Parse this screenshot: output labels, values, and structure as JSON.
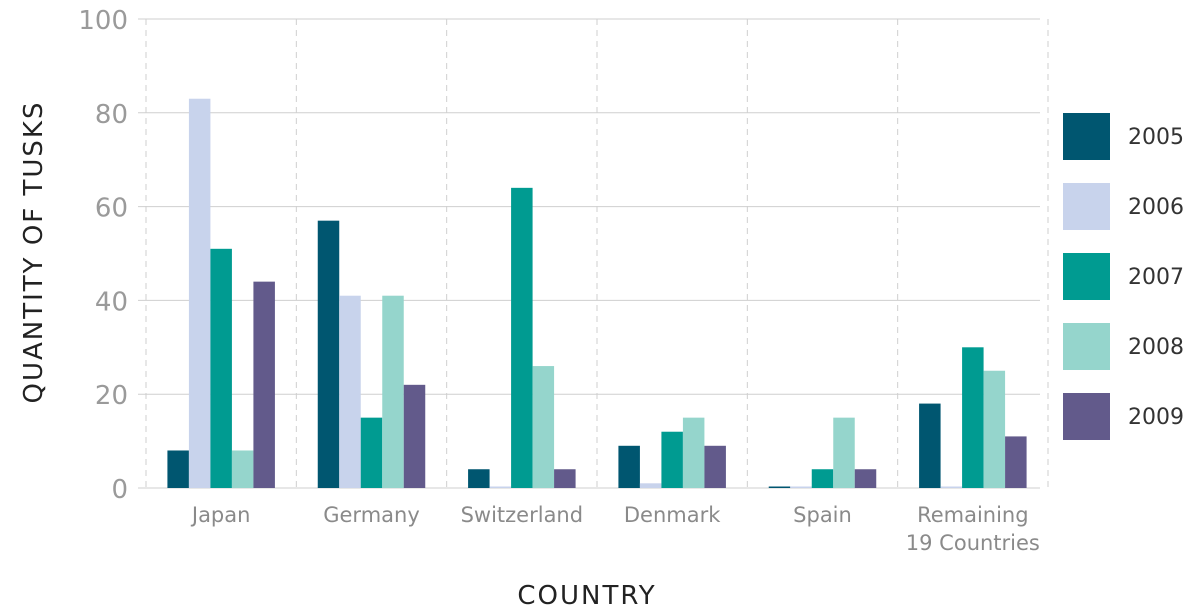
{
  "chart_data": {
    "type": "bar",
    "title": "",
    "xlabel": "COUNTRY",
    "ylabel": "QUANTITY OF TUSKS",
    "ylim": [
      0,
      100
    ],
    "yticks": [
      0,
      20,
      40,
      60,
      80,
      100
    ],
    "categories": [
      [
        "Japan"
      ],
      [
        "Germany"
      ],
      [
        "Switzerland"
      ],
      [
        "Denmark"
      ],
      [
        "Spain"
      ],
      [
        "Remaining",
        "19 Countries"
      ]
    ],
    "series": [
      {
        "name": "2005",
        "color": "#005670",
        "values": [
          8,
          57,
          4,
          9,
          0,
          18
        ]
      },
      {
        "name": "2006",
        "color": "#c8d3ec",
        "values": [
          83,
          41,
          0,
          1,
          0,
          0
        ]
      },
      {
        "name": "2007",
        "color": "#009b91",
        "values": [
          51,
          15,
          64,
          12,
          4,
          30
        ]
      },
      {
        "name": "2008",
        "color": "#95d5cc",
        "values": [
          8,
          41,
          26,
          15,
          15,
          25
        ]
      },
      {
        "name": "2009",
        "color": "#625a8b",
        "values": [
          44,
          22,
          4,
          9,
          4,
          11
        ]
      }
    ],
    "grid": true,
    "legend_position": "right"
  }
}
